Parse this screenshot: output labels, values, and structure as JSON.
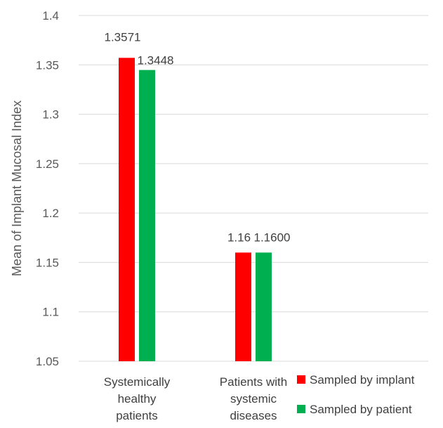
{
  "chart_data": {
    "type": "bar",
    "ylabel": "Mean of Implant Mucosal Index",
    "ylim": [
      1.05,
      1.4
    ],
    "yticks": [
      "1.05",
      "1.1",
      "1.15",
      "1.2",
      "1.25",
      "1.3",
      "1.35",
      "1.4"
    ],
    "grid": true,
    "legend_position": "bottom-right",
    "categories": [
      [
        "Systemically",
        "healthy",
        "patients"
      ],
      [
        "Patients with",
        "systemic",
        "diseases"
      ]
    ],
    "series": [
      {
        "name": "Sampled by implant",
        "color": "#ff0000",
        "values": [
          1.3571,
          1.16
        ],
        "labels": [
          "1.3571",
          "1.16"
        ]
      },
      {
        "name": "Sampled by patient",
        "color": "#00b050",
        "values": [
          1.3448,
          1.16
        ],
        "labels": [
          "1.3448",
          "1.1600"
        ]
      }
    ]
  }
}
